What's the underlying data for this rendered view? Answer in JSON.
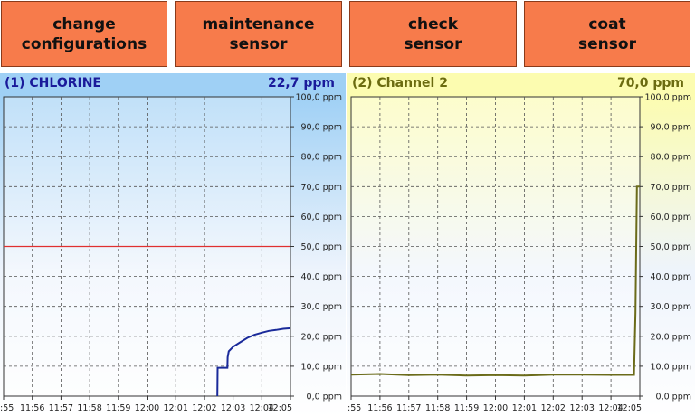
{
  "buttons": [
    {
      "label": "change\nconfigurations"
    },
    {
      "label": "maintenance\nsensor"
    },
    {
      "label": "check\nsensor"
    },
    {
      "label": "coat\nsensor"
    }
  ],
  "colors": {
    "button_bg": "#f77b4b",
    "panel1_header": "#9fd0f5",
    "panel2_header": "#fcfcb0",
    "panel1_text": "#1a1a9a",
    "panel2_text": "#6b6b10",
    "panel1_line": "#1a2a9a",
    "panel2_line": "#6b6b1a",
    "threshold_line": "#e03030"
  },
  "panels": [
    {
      "title": "(1) CHLORINE",
      "value": "22,7 ppm",
      "chart_data": {
        "type": "line",
        "title": "(1) CHLORINE",
        "xlabel": "",
        "ylabel": "",
        "ylim": [
          0,
          100
        ],
        "y_ticks": [
          "0,0 ppm",
          "10,0 ppm",
          "20,0 ppm",
          "30,0 ppm",
          "40,0 ppm",
          "50,0 ppm",
          "60,0 ppm",
          "70,0 ppm",
          "80,0 ppm",
          "90,0 ppm",
          "100,0 ppm"
        ],
        "x_ticks": [
          ":55",
          "11:56",
          "11:57",
          "11:58",
          "11:59",
          "12:00",
          "12:01",
          "12:02",
          "12:03",
          "12:04",
          "12:05"
        ],
        "grid": true,
        "threshold": 50,
        "series": [
          {
            "x": [
              7.45,
              7.46,
              7.8,
              7.81,
              7.85,
              8.0,
              8.25,
              8.5,
              8.75,
              9.0,
              9.25,
              9.5,
              9.75,
              10.0
            ],
            "values": [
              0,
              9.5,
              9.5,
              13,
              15,
              16.5,
              18,
              19.5,
              20.5,
              21.2,
              21.8,
              22.1,
              22.5,
              22.7
            ]
          }
        ]
      }
    },
    {
      "title": "(2) Channel 2",
      "value": "70,0 ppm",
      "chart_data": {
        "type": "line",
        "title": "(2) Channel 2",
        "xlabel": "",
        "ylabel": "",
        "ylim": [
          0,
          100
        ],
        "y_ticks": [
          "0,0 ppm",
          "10,0 ppm",
          "20,0 ppm",
          "30,0 ppm",
          "40,0 ppm",
          "50,0 ppm",
          "60,0 ppm",
          "70,0 ppm",
          "80,0 ppm",
          "90,0 ppm",
          "100,0 ppm"
        ],
        "x_ticks": [
          ":55",
          "11:56",
          "11:57",
          "11:58",
          "11:59",
          "12:00",
          "12:01",
          "12:02",
          "12:03",
          "12:04",
          "12:05"
        ],
        "grid": true,
        "series": [
          {
            "x": [
              0,
              1,
              2,
              3,
              4,
              5,
              6,
              7,
              8,
              9,
              9.8,
              9.85,
              9.9,
              10.0
            ],
            "values": [
              7.2,
              7.4,
              7.0,
              7.2,
              6.9,
              7.0,
              6.9,
              7.2,
              7.2,
              7.1,
              7.1,
              28,
              70,
              70
            ]
          }
        ]
      }
    }
  ]
}
